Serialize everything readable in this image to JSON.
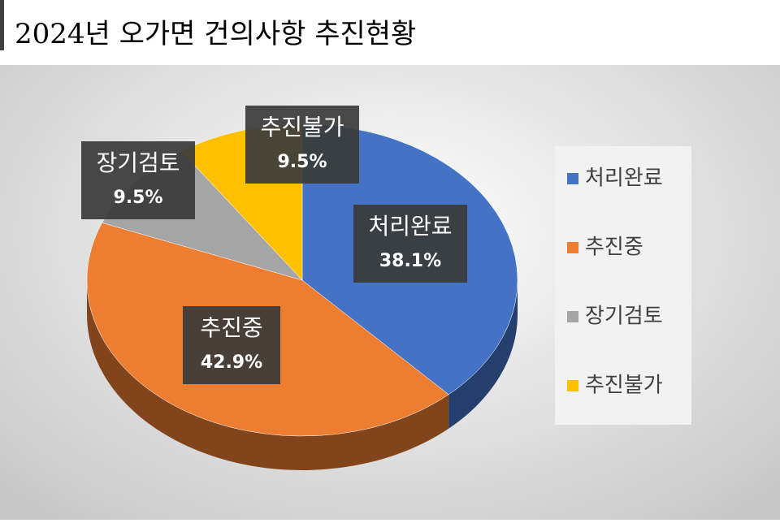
{
  "chart_data": {
    "type": "pie3d",
    "title": "2024년 오가면 건의사항 추진현황",
    "categories": [
      "처리완료",
      "추진중",
      "장기검토",
      "추진불가"
    ],
    "values": [
      38.1,
      42.9,
      9.5,
      9.5
    ],
    "value_labels": [
      "38.1%",
      "42.9%",
      "9.5%",
      "9.5%"
    ],
    "colors": [
      "#4472c4",
      "#ed7d31",
      "#a5a5a5",
      "#ffc000"
    ],
    "legend": "right"
  }
}
